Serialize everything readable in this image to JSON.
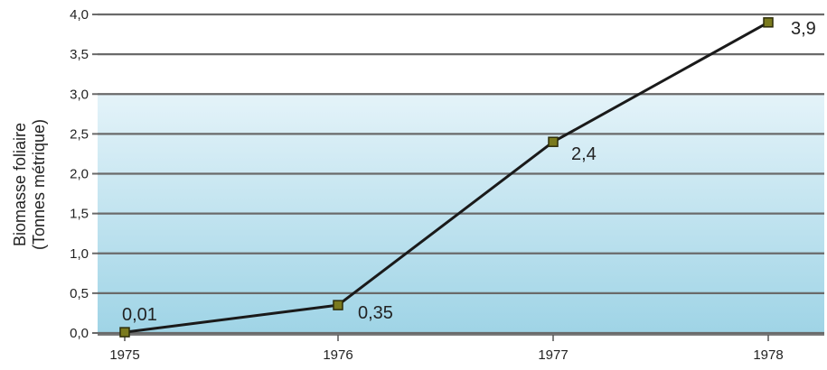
{
  "chart_data": {
    "type": "line",
    "title": "",
    "xlabel": "",
    "ylabel": "Biomasse foliaire",
    "ylabel_sub": "(Tonnes métrique)",
    "categories": [
      "1975",
      "1976",
      "1977",
      "1978"
    ],
    "series": [
      {
        "name": "",
        "values": [
          0.01,
          0.35,
          2.4,
          3.9
        ],
        "value_labels": [
          "0,01",
          "0,35",
          "2,4",
          "3,9"
        ]
      }
    ],
    "ylim": [
      0,
      4.0
    ],
    "yticks": [
      0,
      0.5,
      1.0,
      1.5,
      2.0,
      2.5,
      3.0,
      3.5,
      4.0
    ],
    "ytick_labels": [
      "0,0",
      "0,5",
      "1,0",
      "1,5",
      "2,0",
      "2,5",
      "3,0",
      "3,5",
      "4,0"
    ],
    "grid": true,
    "legend": "none",
    "colors": {
      "line": "#1a1a1a",
      "marker_fill": "#7a7a1e",
      "marker_stroke": "#2d2d0a",
      "gridline": "#6a6a6a",
      "background_gradient_bottom": "#9fd4e6",
      "background_gradient_top": "#e4f3f9",
      "background_white": "#ffffff"
    }
  }
}
